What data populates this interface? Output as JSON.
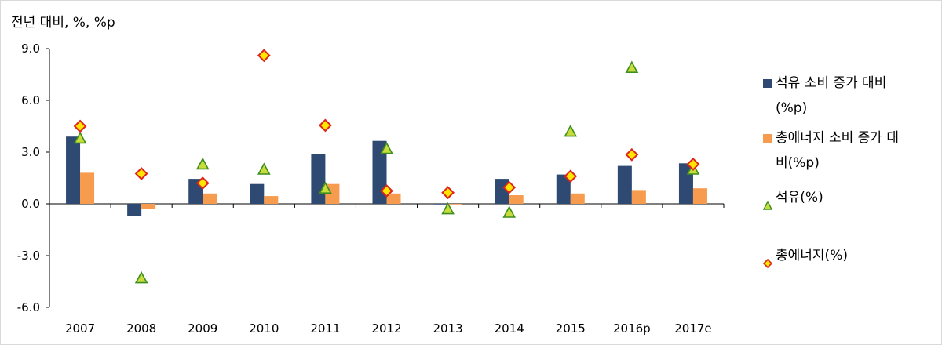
{
  "chart_data": {
    "type": "bar",
    "unit_label": "전년 대비, %, %p",
    "categories": [
      "2007",
      "2008",
      "2009",
      "2010",
      "2011",
      "2012",
      "2013",
      "2014",
      "2015",
      "2016p",
      "2017e"
    ],
    "ylim": [
      -6,
      9
    ],
    "yticks": [
      "9.0",
      "6.0",
      "3.0",
      "0.0",
      "-3.0",
      "-6.0"
    ],
    "ytick_values": [
      9,
      6,
      3,
      0,
      -3,
      -6
    ],
    "grid": false,
    "legend_position": "right",
    "series": [
      {
        "name": "석유 소비 증가 대비(%p)",
        "kind": "bar",
        "color": "#2E4A73",
        "values": [
          3.9,
          -0.7,
          1.45,
          1.15,
          2.9,
          3.65,
          -0.03,
          1.45,
          1.7,
          2.2,
          2.35
        ]
      },
      {
        "name": "총에너지 소비 증가 대비(%p)",
        "kind": "bar",
        "color": "#F79B4F",
        "values": [
          1.8,
          -0.3,
          0.6,
          0.45,
          1.15,
          0.6,
          0.0,
          0.5,
          0.6,
          0.8,
          0.9
        ]
      },
      {
        "name": "석유(%)",
        "kind": "marker-triangle",
        "color": "#C8DC3C",
        "values": [
          3.8,
          -4.3,
          2.3,
          2.0,
          0.9,
          3.2,
          -0.3,
          -0.5,
          4.2,
          7.9,
          2.0
        ]
      },
      {
        "name": "총에너지(%)",
        "kind": "marker-diamond",
        "color": "#FFE600",
        "values": [
          4.5,
          1.75,
          1.2,
          8.6,
          4.55,
          0.75,
          0.65,
          0.95,
          1.6,
          2.85,
          2.3
        ]
      }
    ]
  },
  "legend": {
    "items": [
      {
        "label": "석유 소비 증가 대비(%p)"
      },
      {
        "label": "총에너지 소비 증가 대비(%p)"
      },
      {
        "label": "석유(%)"
      },
      {
        "label": "총에너지(%)"
      }
    ]
  }
}
